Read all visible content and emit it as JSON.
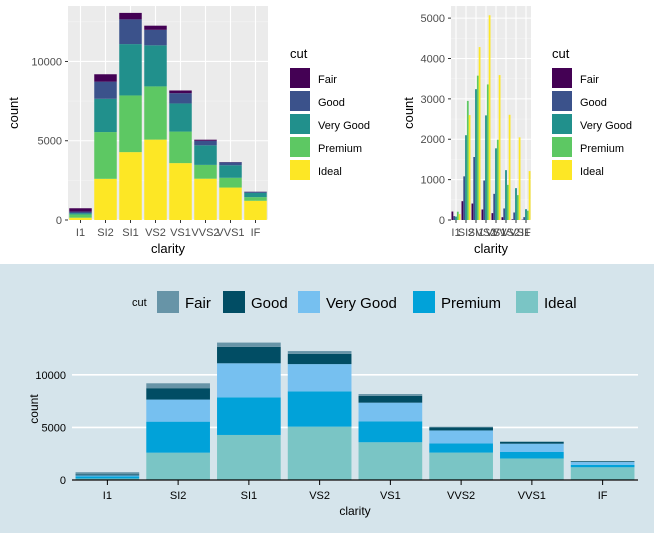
{
  "chart_data": [
    {
      "type": "bar",
      "stacked": true,
      "xlabel": "clarity",
      "ylabel": "count",
      "categories": [
        "I1",
        "SI2",
        "SI1",
        "VS2",
        "VS1",
        "VVS2",
        "VVS1",
        "IF"
      ],
      "ylim": [
        0,
        13500
      ],
      "yticks": [
        0,
        5000,
        10000
      ],
      "legend_title": "cut",
      "legend_position": "right",
      "grid": true,
      "series": [
        {
          "name": "Fair",
          "color": "#440154",
          "values": [
            210,
            466,
            408,
            261,
            170,
            69,
            17,
            9
          ]
        },
        {
          "name": "Good",
          "color": "#3B528B",
          "values": [
            96,
            1081,
            1560,
            978,
            648,
            286,
            186,
            71
          ]
        },
        {
          "name": "Very Good",
          "color": "#21908C",
          "values": [
            84,
            2100,
            3240,
            2591,
            1775,
            1235,
            789,
            268
          ]
        },
        {
          "name": "Premium",
          "color": "#5DC863",
          "values": [
            205,
            2949,
            3575,
            3357,
            1989,
            870,
            616,
            230
          ]
        },
        {
          "name": "Ideal",
          "color": "#FDE725",
          "values": [
            146,
            2598,
            4282,
            5071,
            3589,
            2606,
            2047,
            1212
          ]
        }
      ]
    },
    {
      "type": "bar",
      "grouped": true,
      "xlabel": "clarity",
      "ylabel": "count",
      "categories": [
        "I1",
        "SI2",
        "SI1",
        "VS2",
        "VS1",
        "VVS2",
        "VVS1",
        "IF"
      ],
      "ylim": [
        0,
        5300
      ],
      "yticks": [
        0,
        1000,
        2000,
        3000,
        4000,
        5000
      ],
      "legend_title": "cut",
      "legend_position": "right",
      "grid": true,
      "series": [
        {
          "name": "Fair",
          "color": "#440154",
          "values": [
            210,
            466,
            408,
            261,
            170,
            69,
            17,
            9
          ]
        },
        {
          "name": "Good",
          "color": "#3B528B",
          "values": [
            96,
            1081,
            1560,
            978,
            648,
            286,
            186,
            71
          ]
        },
        {
          "name": "Very Good",
          "color": "#21908C",
          "values": [
            84,
            2100,
            3240,
            2591,
            1775,
            1235,
            789,
            268
          ]
        },
        {
          "name": "Premium",
          "color": "#5DC863",
          "values": [
            205,
            2949,
            3575,
            3357,
            1989,
            870,
            616,
            230
          ]
        },
        {
          "name": "Ideal",
          "color": "#FDE725",
          "values": [
            146,
            2598,
            4282,
            5071,
            3589,
            2606,
            2047,
            1212
          ]
        }
      ]
    },
    {
      "type": "bar",
      "stacked": true,
      "xlabel": "clarity",
      "ylabel": "count",
      "categories": [
        "I1",
        "SI2",
        "SI1",
        "VS2",
        "VS1",
        "VVS2",
        "VVS1",
        "IF"
      ],
      "ylim": [
        0,
        13500
      ],
      "yticks": [
        0,
        5000,
        10000
      ],
      "legend_title": "cut",
      "legend_position": "top",
      "grid": true,
      "background": "#D5E4EB",
      "series": [
        {
          "name": "Fair",
          "color": "#6794A7",
          "values": [
            210,
            466,
            408,
            261,
            170,
            69,
            17,
            9
          ]
        },
        {
          "name": "Good",
          "color": "#014D64",
          "values": [
            96,
            1081,
            1560,
            978,
            648,
            286,
            186,
            71
          ]
        },
        {
          "name": "Very Good",
          "color": "#76C0F0",
          "values": [
            84,
            2100,
            3240,
            2591,
            1775,
            1235,
            789,
            268
          ]
        },
        {
          "name": "Premium",
          "color": "#01A2D9",
          "values": [
            205,
            2949,
            3575,
            3357,
            1989,
            870,
            616,
            230
          ]
        },
        {
          "name": "Ideal",
          "color": "#7AC5C5",
          "values": [
            146,
            2598,
            4282,
            5071,
            3589,
            2606,
            2047,
            1212
          ]
        }
      ]
    }
  ]
}
